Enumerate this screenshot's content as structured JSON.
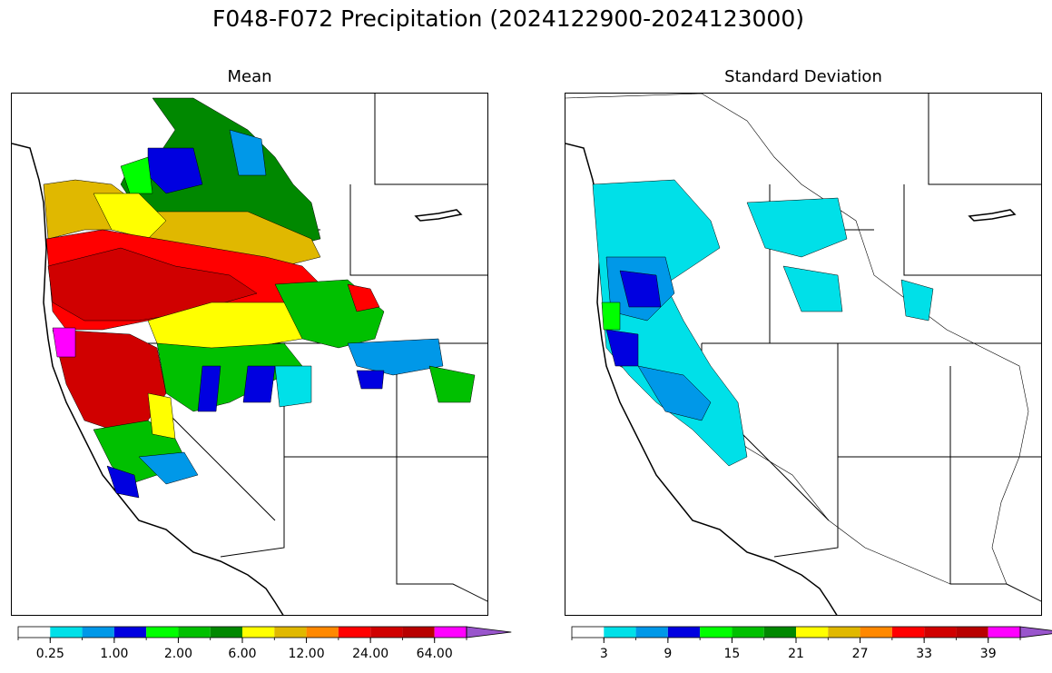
{
  "title": "F048-F072 Precipitation (2024122900-2024123000)",
  "panels": [
    {
      "title": "Mean",
      "colorbar": {
        "colors": [
          "#ffffff",
          "#00e0e8",
          "#0098e8",
          "#0000e0",
          "#00ff00",
          "#00c000",
          "#008800",
          "#ffff00",
          "#e0b800",
          "#ff8800",
          "#ff0000",
          "#d00000",
          "#b80000",
          "#ff00ff",
          "#9955cc"
        ],
        "tick_labels": [
          "0.25",
          "1.00",
          "2.00",
          "6.00",
          "12.00",
          "24.00",
          "64.00"
        ],
        "extend": "max"
      }
    },
    {
      "title": "Standard Deviation",
      "colorbar": {
        "colors": [
          "#ffffff",
          "#00e0e8",
          "#0098e8",
          "#0000e0",
          "#00ff00",
          "#00c000",
          "#008800",
          "#ffff00",
          "#e0b800",
          "#ff8800",
          "#ff0000",
          "#d00000",
          "#b80000",
          "#ff00ff",
          "#9955cc"
        ],
        "tick_labels": [
          "3",
          "9",
          "15",
          "21",
          "27",
          "33",
          "39"
        ],
        "extend": "max"
      }
    }
  ]
}
